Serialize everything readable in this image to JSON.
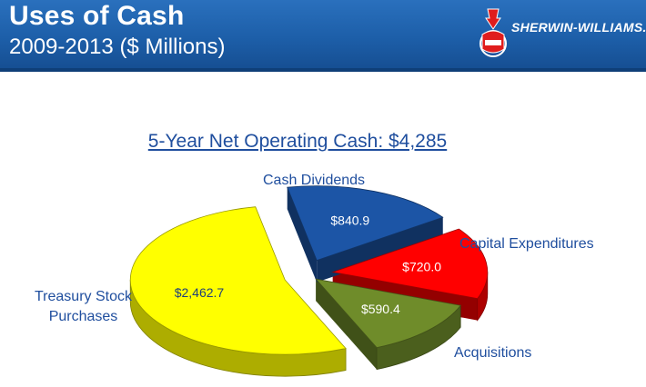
{
  "header": {
    "title": "Uses of Cash",
    "subtitle": "2009-2013 ($ Millions)",
    "logo_text": "SHERWIN-WILLIAMS.",
    "logo_icon": "sherwin-williams-cover-the-earth-icon"
  },
  "colors": {
    "header_blue": "#1d5fa9",
    "title_blue": "#1f4e9e",
    "treasury": "#ffff00",
    "dividends": "#1c55a6",
    "capex": "#ff0000",
    "acquisitions": "#6f8c2a"
  },
  "chart_data": {
    "type": "pie",
    "title": "5-Year Net Operating Cash:  $4,285",
    "categories": [
      "Cash Dividends",
      "Capital Expenditures",
      "Acquisitions",
      "Treasury Stock Purchases"
    ],
    "values": [
      840.9,
      720.0,
      590.4,
      2462.7
    ],
    "value_labels": [
      "$840.9",
      "$720.0",
      "$590.4",
      "$2,462.7"
    ],
    "style": "3d-exploded",
    "legend": "none"
  }
}
